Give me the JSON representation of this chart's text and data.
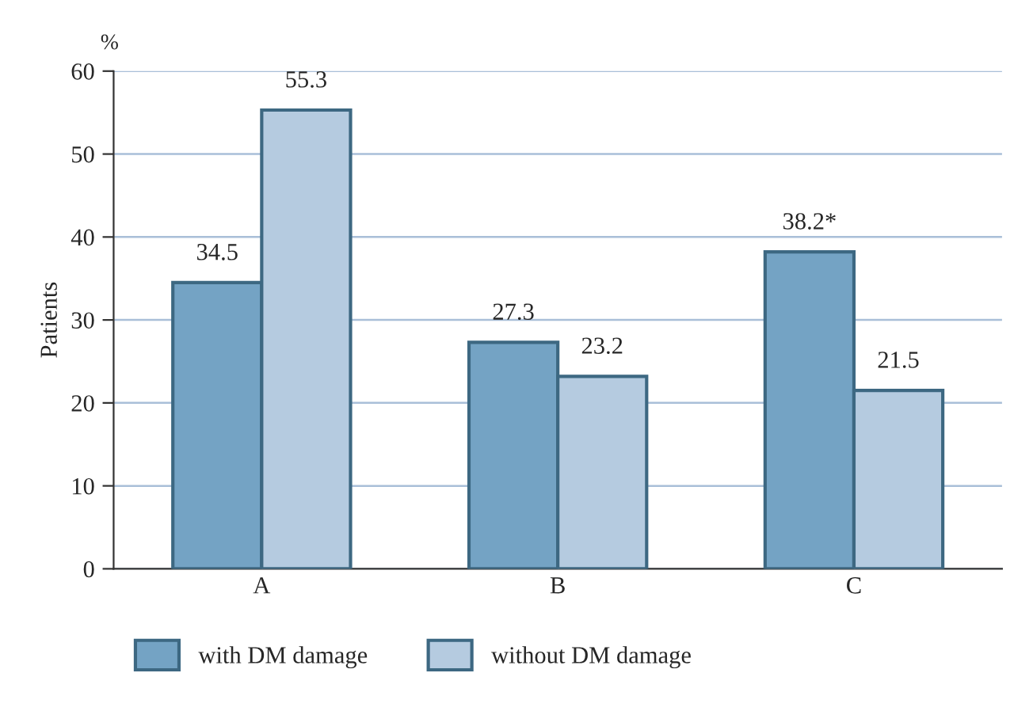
{
  "chart_data": {
    "type": "bar",
    "ylabel": "Patients",
    "annotations": [
      "%"
    ],
    "categories": [
      "A",
      "B",
      "C"
    ],
    "series": [
      {
        "name": "with DM damage",
        "color": "#74a3c4",
        "values": [
          34.5,
          27.3,
          38.2
        ],
        "value_labels": [
          "34.5",
          "27.3",
          "38.2*"
        ]
      },
      {
        "name": "without DM damage",
        "color": "#b5cbe0",
        "values": [
          55.3,
          23.2,
          21.5
        ],
        "value_labels": [
          "55.3",
          "23.2",
          "21.5"
        ]
      }
    ],
    "ylim": [
      0,
      60
    ],
    "yticks": [
      0,
      10,
      20,
      30,
      40,
      50,
      60
    ],
    "grid": "y",
    "legend": "bottom"
  }
}
